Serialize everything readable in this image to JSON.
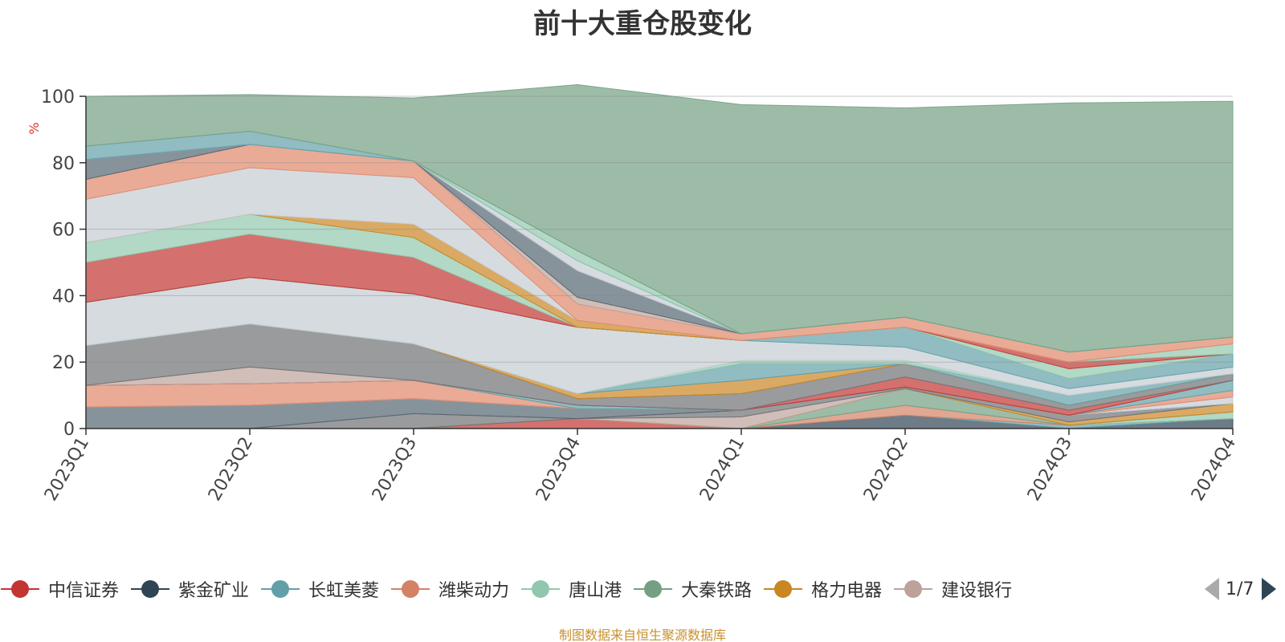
{
  "title": "前十大重仓股变化",
  "footnote": "制图数据来自恒生聚源数据库",
  "legend_page": "1/7",
  "chart_data": {
    "type": "area",
    "stacked": true,
    "title": "前十大重仓股变化",
    "ylabel": "%",
    "ylim": [
      0,
      100
    ],
    "yticks": [
      0,
      20,
      40,
      60,
      80,
      100
    ],
    "grid": true,
    "legend_position": "bottom",
    "categories": [
      "2023Q1",
      "2023Q2",
      "2023Q3",
      "2023Q4",
      "2024Q1",
      "2024Q2",
      "2024Q3",
      "2024Q4"
    ],
    "series": [
      {
        "name": "中信证券",
        "color": "#c23531",
        "values": [
          0,
          0,
          0,
          3,
          0,
          0,
          0,
          0
        ]
      },
      {
        "name": "紫金矿业",
        "color": "#2f4554",
        "values": [
          0,
          0,
          0,
          0,
          0,
          4,
          0,
          3
        ]
      },
      {
        "name": "长虹美菱",
        "color": "#61a0a8",
        "values": [
          0,
          0,
          0,
          0,
          0,
          0,
          1,
          0
        ]
      },
      {
        "name": "潍柴动力",
        "color": "#d48265",
        "values": [
          0,
          0,
          0,
          0,
          0,
          3,
          0,
          0
        ]
      },
      {
        "name": "唐山港",
        "color": "#91c7ae",
        "values": [
          0,
          0,
          0,
          0,
          0,
          0,
          0,
          2
        ]
      },
      {
        "name": "大秦铁路",
        "color": "#749f83",
        "values": [
          0,
          0,
          0,
          0,
          0,
          5,
          0,
          0
        ]
      },
      {
        "name": "格力电器",
        "color": "#ca8622",
        "values": [
          0,
          0,
          0,
          0,
          0,
          0,
          1,
          2.5
        ]
      },
      {
        "name": "建设银行",
        "color": "#bda29a",
        "values": [
          0,
          0,
          0,
          0,
          3.5,
          0,
          0,
          0
        ]
      },
      {
        "series_key": "s9",
        "color": "#6e7074",
        "values": [
          0,
          0,
          4.5,
          0,
          2,
          0.5,
          2,
          0
        ]
      },
      {
        "series_key": "s10",
        "color": "#546570",
        "values": [
          6.5,
          7,
          4.5,
          3,
          0,
          0,
          0,
          0
        ]
      },
      {
        "series_key": "s11",
        "color": "#c4ccd3",
        "values": [
          0,
          0,
          0,
          0,
          0,
          0,
          0,
          2
        ]
      },
      {
        "series_key": "s12",
        "color": "#e0876a",
        "values": [
          6.5,
          6.5,
          5.5,
          0,
          0,
          0,
          0,
          2
        ]
      },
      {
        "series_key": "s13",
        "color": "#61a0a8",
        "values": [
          0,
          0,
          0,
          1,
          0,
          0,
          0,
          3
        ]
      },
      {
        "series_key": "s14",
        "color": "#c23531",
        "values": [
          0,
          0,
          0,
          0,
          0,
          3,
          1.5,
          0
        ]
      },
      {
        "series_key": "s15",
        "color": "#bda29a",
        "values": [
          0,
          5,
          0,
          0,
          0,
          0,
          0,
          0
        ]
      },
      {
        "series_key": "s16",
        "color": "#6e7074",
        "values": [
          12,
          13,
          11,
          2,
          5,
          4,
          1.5,
          2
        ]
      },
      {
        "series_key": "s17",
        "color": "#ca8622",
        "values": [
          0,
          0,
          0,
          1.5,
          4,
          0,
          0,
          0
        ]
      },
      {
        "series_key": "s18",
        "color": "#61a0a8",
        "values": [
          0,
          0,
          0,
          0,
          5,
          0,
          3,
          0
        ]
      },
      {
        "series_key": "s19",
        "color": "#91c7ae",
        "values": [
          0,
          0,
          0,
          0,
          1,
          1,
          0,
          0
        ]
      },
      {
        "series_key": "s20",
        "color": "#c4ccd3",
        "values": [
          13,
          14,
          15,
          20,
          6,
          4,
          2,
          2
        ]
      },
      {
        "series_key": "s21",
        "color": "#61a0a8",
        "values": [
          0,
          0,
          0,
          0,
          0,
          6,
          3,
          4
        ]
      },
      {
        "series_key": "s22",
        "color": "#91c7ae",
        "values": [
          0,
          0,
          0,
          0,
          0,
          0,
          3,
          0
        ]
      },
      {
        "series_key": "s23",
        "color": "#c23531",
        "values": [
          12,
          13,
          11,
          0,
          0,
          0,
          2,
          0
        ]
      },
      {
        "series_key": "s24",
        "color": "#91c7ae",
        "values": [
          6,
          6,
          6,
          0,
          0,
          0,
          0,
          3
        ]
      },
      {
        "series_key": "s25",
        "color": "#ca8622",
        "values": [
          0,
          0,
          4,
          2,
          0,
          0,
          0,
          0
        ]
      },
      {
        "series_key": "s26",
        "color": "#c4ccd3",
        "values": [
          13,
          14,
          14,
          0,
          0,
          0,
          0,
          0
        ]
      },
      {
        "series_key": "s27",
        "color": "#e0876a",
        "values": [
          6,
          7,
          5,
          5,
          2,
          3,
          3,
          2
        ]
      },
      {
        "series_key": "s28",
        "color": "#bda29a",
        "values": [
          0,
          0,
          0,
          2,
          0,
          0,
          0,
          0
        ]
      },
      {
        "series_key": "s29",
        "color": "#546570",
        "values": [
          6,
          0,
          0,
          8,
          0,
          0,
          0,
          0
        ]
      },
      {
        "series_key": "s30",
        "color": "#c4ccd3",
        "values": [
          0,
          0,
          0,
          3,
          0,
          0,
          0,
          0
        ]
      },
      {
        "series_key": "s31",
        "color": "#61a0a8",
        "values": [
          4,
          4,
          0,
          0,
          0,
          0,
          0,
          0
        ]
      },
      {
        "series_key": "s32",
        "color": "#91c7ae",
        "values": [
          0,
          0,
          0,
          3,
          0,
          0,
          0,
          0
        ]
      },
      {
        "series_key": "s33",
        "color": "#749f83",
        "values": [
          15,
          11,
          19,
          50,
          69,
          63,
          75,
          71
        ]
      }
    ]
  }
}
